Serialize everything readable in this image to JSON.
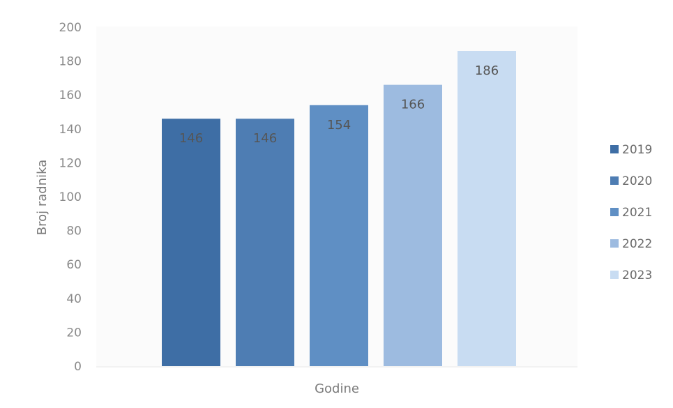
{
  "chart_data": {
    "type": "bar",
    "categories": [
      "2019",
      "2020",
      "2021",
      "2022",
      "2023"
    ],
    "values": [
      146,
      146,
      154,
      166,
      186
    ],
    "data_labels": [
      "146",
      "146",
      "154",
      "166",
      "186"
    ],
    "colors": [
      "#3e6ea5",
      "#4e7db3",
      "#5f8fc4",
      "#9dbbe0",
      "#c8dcf2"
    ],
    "label_colors": [
      "#555555",
      "#555555",
      "#555555",
      "#555555",
      "#555555"
    ],
    "title": "",
    "xlabel": "Godine",
    "ylabel": "Broj radnika",
    "ylim": [
      0,
      200
    ],
    "yticks": [
      "0",
      "20",
      "40",
      "60",
      "80",
      "100",
      "120",
      "140",
      "160",
      "180",
      "200"
    ],
    "grid": false,
    "legend": {
      "position": "right",
      "entries": [
        "2019",
        "2020",
        "2021",
        "2022",
        "2023"
      ]
    }
  }
}
